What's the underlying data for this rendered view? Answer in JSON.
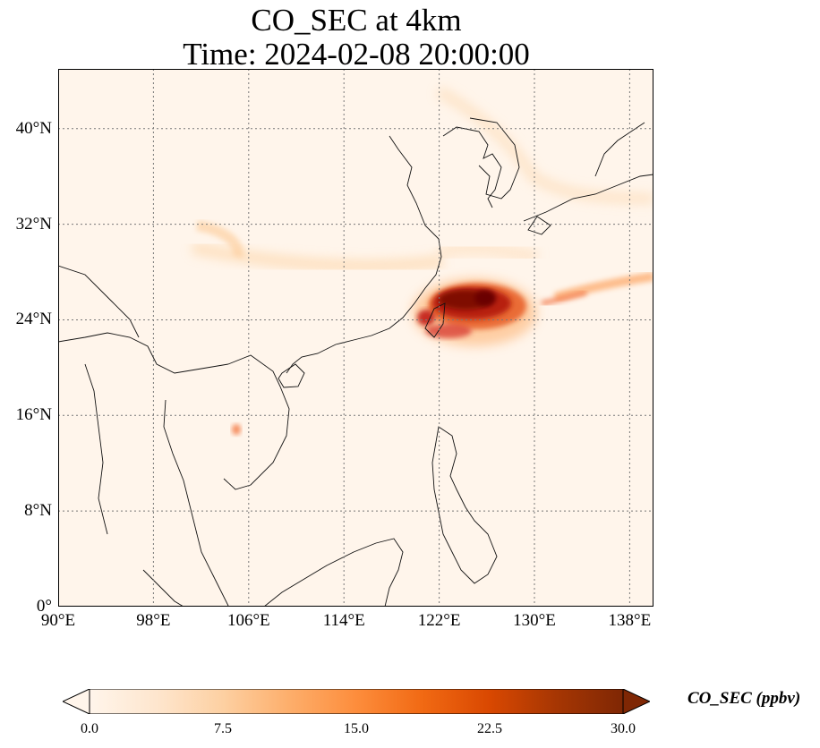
{
  "title": {
    "line1": "CO_SEC at 4km",
    "line2": "Time: 2024-02-08 20:00:00"
  },
  "map": {
    "lon_range": [
      90,
      140
    ],
    "lat_range": [
      0,
      45
    ],
    "x_ticks": [
      {
        "value": 90,
        "label": "90°E"
      },
      {
        "value": 98,
        "label": "98°E"
      },
      {
        "value": 106,
        "label": "106°E"
      },
      {
        "value": 114,
        "label": "114°E"
      },
      {
        "value": 122,
        "label": "122°E"
      },
      {
        "value": 130,
        "label": "130°E"
      },
      {
        "value": 138,
        "label": "138°E"
      }
    ],
    "y_ticks": [
      {
        "value": 0,
        "label": "0°"
      },
      {
        "value": 8,
        "label": "8°N"
      },
      {
        "value": 16,
        "label": "16°N"
      },
      {
        "value": 24,
        "label": "24°N"
      },
      {
        "value": 32,
        "label": "32°N"
      },
      {
        "value": 40,
        "label": "40°N"
      }
    ],
    "grid": true,
    "background_color": "#fff5eb"
  },
  "colorbar": {
    "label": "CO_SEC (ppbv)",
    "min": 0.0,
    "max": 30.0,
    "extend": "both",
    "ticks": [
      {
        "value": 0,
        "label": "0.0"
      },
      {
        "value": 7.5,
        "label": "7.5"
      },
      {
        "value": 15,
        "label": "15.0"
      },
      {
        "value": 22.5,
        "label": "22.5"
      },
      {
        "value": 30,
        "label": "30.0"
      }
    ],
    "colormap": [
      "#fff5eb",
      "#fee6ce",
      "#fdd0a2",
      "#fdae6b",
      "#fd8d3c",
      "#f16913",
      "#d94801",
      "#a63603",
      "#7f2704"
    ]
  }
}
